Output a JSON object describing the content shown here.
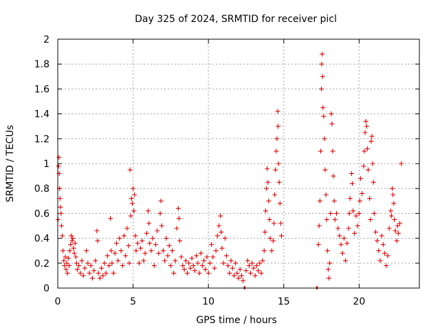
{
  "chart_data": {
    "type": "scatter",
    "title": "Day 325 of 2024, SRMTID for receiver picl",
    "xlabel": "GPS time / hours",
    "ylabel": "SRMTID / TECUs",
    "xlim": [
      0,
      24
    ],
    "ylim": [
      0,
      2
    ],
    "xticks": [
      0,
      5,
      10,
      15,
      20
    ],
    "xtick_labels": [
      "0",
      "5",
      "10",
      "15",
      "20"
    ],
    "yticks": [
      0,
      0.2,
      0.4,
      0.6,
      0.8,
      1,
      1.2,
      1.4,
      1.6,
      1.8,
      2
    ],
    "ytick_labels": [
      "0",
      "0.2",
      "0.4",
      "0.6",
      "0.8",
      "1",
      "1.2",
      "1.4",
      "1.6",
      "1.8",
      "2"
    ],
    "grid": true,
    "marker": "+",
    "color": "#e00000",
    "series": [
      {
        "name": "SRMTID",
        "points": [
          [
            0.02,
            0.55
          ],
          [
            0.05,
            0.98
          ],
          [
            0.08,
            1.05
          ],
          [
            0.1,
            0.92
          ],
          [
            0.12,
            0.8
          ],
          [
            0.15,
            0.72
          ],
          [
            0.18,
            0.65
          ],
          [
            0.22,
            0.6
          ],
          [
            0.25,
            0.5
          ],
          [
            0.3,
            0.42
          ],
          [
            0.35,
            0.3
          ],
          [
            0.4,
            0.22
          ],
          [
            0.45,
            0.18
          ],
          [
            0.5,
            0.25
          ],
          [
            0.55,
            0.15
          ],
          [
            0.6,
            0.2
          ],
          [
            0.65,
            0.12
          ],
          [
            0.7,
            0.24
          ],
          [
            0.75,
            0.18
          ],
          [
            0.8,
            0.3
          ],
          [
            0.85,
            0.35
          ],
          [
            0.9,
            0.42
          ],
          [
            0.95,
            0.38
          ],
          [
            1.0,
            0.4
          ],
          [
            1.05,
            0.32
          ],
          [
            1.1,
            0.28
          ],
          [
            1.15,
            0.36
          ],
          [
            1.2,
            0.25
          ],
          [
            1.25,
            0.2
          ],
          [
            1.3,
            0.15
          ],
          [
            1.4,
            0.18
          ],
          [
            1.5,
            0.12
          ],
          [
            1.6,
            0.22
          ],
          [
            1.7,
            0.1
          ],
          [
            1.8,
            0.16
          ],
          [
            1.9,
            0.3
          ],
          [
            2.0,
            0.2
          ],
          [
            2.1,
            0.12
          ],
          [
            2.2,
            0.18
          ],
          [
            2.3,
            0.08
          ],
          [
            2.4,
            0.14
          ],
          [
            2.5,
            0.22
          ],
          [
            2.6,
            0.46
          ],
          [
            2.65,
            0.38
          ],
          [
            2.7,
            0.12
          ],
          [
            2.8,
            0.08
          ],
          [
            2.9,
            0.16
          ],
          [
            3.0,
            0.1
          ],
          [
            3.1,
            0.2
          ],
          [
            3.2,
            0.12
          ],
          [
            3.3,
            0.26
          ],
          [
            3.4,
            0.18
          ],
          [
            3.5,
            0.56
          ],
          [
            3.55,
            0.3
          ],
          [
            3.6,
            0.2
          ],
          [
            3.7,
            0.12
          ],
          [
            3.8,
            0.28
          ],
          [
            3.9,
            0.36
          ],
          [
            4.0,
            0.22
          ],
          [
            4.1,
            0.4
          ],
          [
            4.2,
            0.3
          ],
          [
            4.3,
            0.18
          ],
          [
            4.4,
            0.42
          ],
          [
            4.5,
            0.26
          ],
          [
            4.6,
            0.48
          ],
          [
            4.7,
            0.34
          ],
          [
            4.75,
            0.2
          ],
          [
            4.8,
            0.95
          ],
          [
            4.85,
            0.58
          ],
          [
            4.9,
            0.72
          ],
          [
            4.95,
            0.68
          ],
          [
            5.0,
            0.8
          ],
          [
            5.05,
            0.62
          ],
          [
            5.1,
            0.75
          ],
          [
            5.15,
            0.42
          ],
          [
            5.2,
            0.3
          ],
          [
            5.3,
            0.36
          ],
          [
            5.4,
            0.2
          ],
          [
            5.5,
            0.32
          ],
          [
            5.6,
            0.38
          ],
          [
            5.7,
            0.22
          ],
          [
            5.8,
            0.28
          ],
          [
            5.9,
            0.44
          ],
          [
            6.0,
            0.62
          ],
          [
            6.05,
            0.52
          ],
          [
            6.1,
            0.36
          ],
          [
            6.2,
            0.3
          ],
          [
            6.3,
            0.4
          ],
          [
            6.4,
            0.18
          ],
          [
            6.5,
            0.35
          ],
          [
            6.6,
            0.46
          ],
          [
            6.7,
            0.28
          ],
          [
            6.8,
            0.6
          ],
          [
            6.85,
            0.7
          ],
          [
            6.9,
            0.5
          ],
          [
            7.0,
            0.3
          ],
          [
            7.1,
            0.22
          ],
          [
            7.2,
            0.4
          ],
          [
            7.3,
            0.26
          ],
          [
            7.4,
            0.34
          ],
          [
            7.5,
            0.18
          ],
          [
            7.6,
            0.3
          ],
          [
            7.7,
            0.12
          ],
          [
            7.8,
            0.22
          ],
          [
            7.9,
            0.48
          ],
          [
            8.0,
            0.64
          ],
          [
            8.05,
            0.56
          ],
          [
            8.1,
            0.38
          ],
          [
            8.2,
            0.25
          ],
          [
            8.3,
            0.18
          ],
          [
            8.4,
            0.15
          ],
          [
            8.5,
            0.22
          ],
          [
            8.6,
            0.12
          ],
          [
            8.7,
            0.2
          ],
          [
            8.8,
            0.16
          ],
          [
            8.9,
            0.24
          ],
          [
            9.0,
            0.18
          ],
          [
            9.1,
            0.14
          ],
          [
            9.2,
            0.26
          ],
          [
            9.3,
            0.2
          ],
          [
            9.4,
            0.12
          ],
          [
            9.5,
            0.28
          ],
          [
            9.6,
            0.18
          ],
          [
            9.7,
            0.22
          ],
          [
            9.8,
            0.15
          ],
          [
            9.9,
            0.25
          ],
          [
            10.0,
            0.12
          ],
          [
            10.1,
            0.2
          ],
          [
            10.2,
            0.35
          ],
          [
            10.3,
            0.25
          ],
          [
            10.4,
            0.16
          ],
          [
            10.5,
            0.3
          ],
          [
            10.6,
            0.42
          ],
          [
            10.7,
            0.5
          ],
          [
            10.8,
            0.58
          ],
          [
            10.85,
            0.45
          ],
          [
            10.9,
            0.32
          ],
          [
            11.0,
            0.2
          ],
          [
            11.1,
            0.4
          ],
          [
            11.2,
            0.26
          ],
          [
            11.3,
            0.18
          ],
          [
            11.4,
            0.12
          ],
          [
            11.5,
            0.22
          ],
          [
            11.6,
            0.16
          ],
          [
            11.7,
            0.1
          ],
          [
            11.8,
            0.2
          ],
          [
            11.9,
            0.12
          ],
          [
            12.0,
            0.08
          ],
          [
            12.1,
            0.15
          ],
          [
            12.2,
            0.1
          ],
          [
            12.3,
            0.06
          ],
          [
            12.5,
            0.14
          ],
          [
            12.6,
            0.22
          ],
          [
            12.7,
            0.18
          ],
          [
            12.8,
            0.12
          ],
          [
            12.9,
            0.2
          ],
          [
            13.0,
            0.16
          ],
          [
            13.1,
            0.1
          ],
          [
            13.2,
            0.18
          ],
          [
            13.3,
            0.14
          ],
          [
            13.4,
            0.2
          ],
          [
            13.5,
            0.12
          ],
          [
            13.6,
            0.22
          ],
          [
            13.7,
            0.3
          ],
          [
            13.75,
            0.45
          ],
          [
            13.8,
            0.62
          ],
          [
            13.85,
            0.8
          ],
          [
            13.9,
            0.96
          ],
          [
            13.95,
            0.85
          ],
          [
            14.0,
            0.7
          ],
          [
            14.05,
            0.55
          ],
          [
            14.1,
            0.4
          ],
          [
            14.2,
            0.3
          ],
          [
            14.3,
            0.38
          ],
          [
            14.35,
            0.52
          ],
          [
            14.4,
            0.75
          ],
          [
            14.45,
            0.95
          ],
          [
            14.5,
            1.1
          ],
          [
            14.55,
            1.2
          ],
          [
            14.6,
            1.42
          ],
          [
            14.62,
            1.3
          ],
          [
            14.65,
            1.0
          ],
          [
            14.7,
            0.85
          ],
          [
            14.75,
            0.68
          ],
          [
            14.8,
            0.52
          ],
          [
            14.85,
            0.42
          ],
          [
            17.3,
            0.35
          ],
          [
            17.35,
            0.5
          ],
          [
            17.4,
            0.7
          ],
          [
            17.45,
            1.1
          ],
          [
            17.5,
            1.6
          ],
          [
            17.52,
            1.8
          ],
          [
            17.55,
            1.88
          ],
          [
            17.58,
            1.7
          ],
          [
            17.6,
            1.45
          ],
          [
            17.65,
            1.38
          ],
          [
            17.7,
            1.2
          ],
          [
            17.75,
            0.95
          ],
          [
            17.8,
            0.75
          ],
          [
            17.85,
            0.55
          ],
          [
            17.9,
            0.3
          ],
          [
            17.95,
            0.15
          ],
          [
            18.0,
            0.08
          ],
          [
            18.05,
            0.2
          ],
          [
            18.1,
            0.6
          ],
          [
            18.15,
            1.4
          ],
          [
            18.2,
            1.32
          ],
          [
            18.25,
            1.1
          ],
          [
            18.3,
            0.9
          ],
          [
            18.35,
            0.7
          ],
          [
            18.4,
            0.55
          ],
          [
            18.5,
            0.6
          ],
          [
            18.6,
            0.48
          ],
          [
            18.7,
            0.42
          ],
          [
            18.8,
            0.35
          ],
          [
            18.9,
            0.28
          ],
          [
            19.0,
            0.4
          ],
          [
            19.1,
            0.22
          ],
          [
            19.2,
            0.36
          ],
          [
            19.3,
            0.48
          ],
          [
            19.35,
            0.6
          ],
          [
            19.4,
            0.72
          ],
          [
            19.5,
            0.92
          ],
          [
            19.55,
            0.84
          ],
          [
            19.6,
            0.62
          ],
          [
            19.7,
            0.44
          ],
          [
            19.8,
            0.58
          ],
          [
            19.9,
            0.5
          ],
          [
            20.0,
            0.6
          ],
          [
            20.05,
            0.7
          ],
          [
            20.1,
            0.88
          ],
          [
            20.2,
            0.76
          ],
          [
            20.3,
            0.98
          ],
          [
            20.35,
            1.1
          ],
          [
            20.4,
            1.25
          ],
          [
            20.45,
            1.34
          ],
          [
            20.5,
            1.3
          ],
          [
            20.55,
            1.12
          ],
          [
            20.6,
            0.95
          ],
          [
            20.7,
            0.72
          ],
          [
            20.75,
            0.55
          ],
          [
            20.8,
            1.18
          ],
          [
            20.85,
            1.22
          ],
          [
            20.9,
            1.0
          ],
          [
            20.95,
            0.85
          ],
          [
            21.0,
            0.6
          ],
          [
            21.1,
            0.45
          ],
          [
            21.2,
            0.38
          ],
          [
            21.3,
            0.3
          ],
          [
            21.4,
            0.22
          ],
          [
            21.5,
            0.42
          ],
          [
            21.6,
            0.35
          ],
          [
            21.7,
            0.28
          ],
          [
            21.8,
            0.18
          ],
          [
            21.9,
            0.26
          ],
          [
            22.0,
            0.48
          ],
          [
            22.1,
            0.62
          ],
          [
            22.15,
            0.58
          ],
          [
            22.2,
            0.8
          ],
          [
            22.25,
            0.75
          ],
          [
            22.3,
            0.68
          ],
          [
            22.35,
            0.55
          ],
          [
            22.4,
            0.46
          ],
          [
            22.5,
            0.38
          ],
          [
            22.55,
            0.5
          ],
          [
            22.6,
            0.44
          ],
          [
            22.7,
            0.52
          ],
          [
            22.8,
            1.0
          ]
        ],
        "gaps": [
          [
            12.35,
            12.45
          ],
          [
            17.15,
            17.25
          ]
        ]
      }
    ]
  }
}
